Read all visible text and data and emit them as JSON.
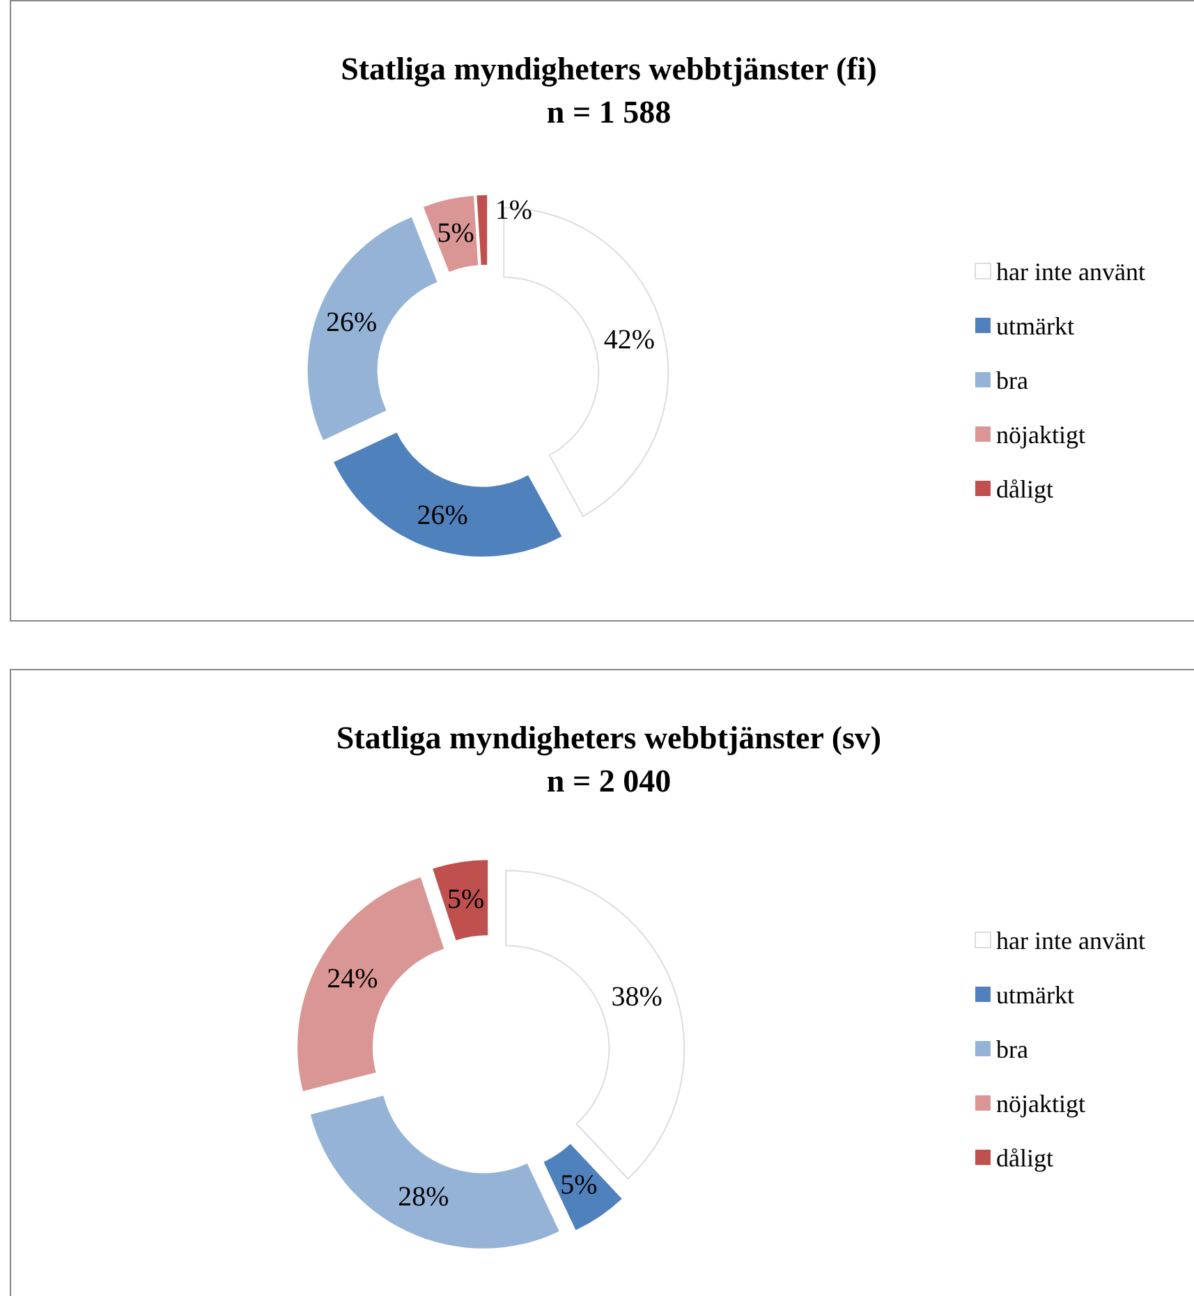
{
  "chart_data": [
    {
      "type": "donut",
      "title": "Statliga myndigheters webbtjänster (fi)",
      "subtitle": "n = 1 588",
      "categories": [
        "har inte använt",
        "utmärkt",
        "bra",
        "nöjaktigt",
        "dåligt"
      ],
      "values": [
        42,
        26,
        26,
        5,
        1
      ],
      "colors": [
        "#ffffff",
        "#4f81bd",
        "#95b3d7",
        "#d99694",
        "#c0504d"
      ],
      "value_labels": [
        "42%",
        "26%",
        "26%",
        "5%",
        "1%"
      ],
      "legend": "right"
    },
    {
      "type": "donut",
      "title": "Statliga myndigheters webbtjänster (sv)",
      "subtitle": "n = 2 040",
      "categories": [
        "har inte använt",
        "utmärkt",
        "bra",
        "nöjaktigt",
        "dåligt"
      ],
      "values": [
        38,
        5,
        28,
        24,
        5
      ],
      "colors": [
        "#ffffff",
        "#4f81bd",
        "#95b3d7",
        "#d99694",
        "#c0504d"
      ],
      "value_labels": [
        "38%",
        "5%",
        "28%",
        "24%",
        "5%"
      ],
      "legend": "right"
    }
  ]
}
